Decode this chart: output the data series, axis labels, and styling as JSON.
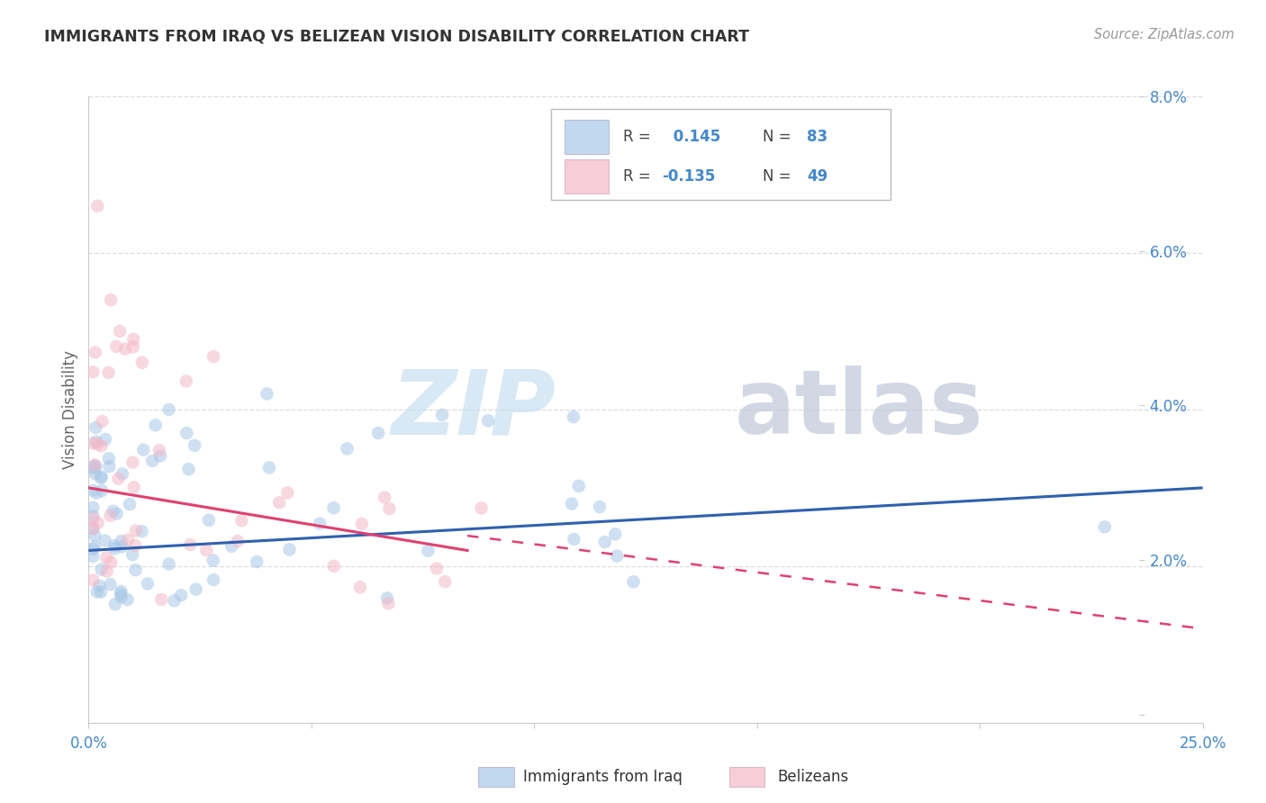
{
  "title": "IMMIGRANTS FROM IRAQ VS BELIZEAN VISION DISABILITY CORRELATION CHART",
  "source": "Source: ZipAtlas.com",
  "ylabel": "Vision Disability",
  "xlim": [
    0.0,
    0.25
  ],
  "ylim": [
    0.0,
    0.08
  ],
  "blue_color": "#a8c8e8",
  "pink_color": "#f4b8c8",
  "blue_line_color": "#3060b0",
  "pink_line_color": "#e04070",
  "blue_scatter_alpha": 0.55,
  "pink_scatter_alpha": 0.55,
  "scatter_size": 110,
  "blue_seed": 42,
  "pink_seed": 99,
  "watermark_zip_color": "#c8dff0",
  "watermark_atlas_color": "#c0c8d8",
  "grid_color": "#dddddd",
  "tick_color": "#4488cc",
  "spine_color": "#cccccc",
  "title_color": "#333333",
  "source_color": "#999999",
  "ylabel_color": "#666666"
}
